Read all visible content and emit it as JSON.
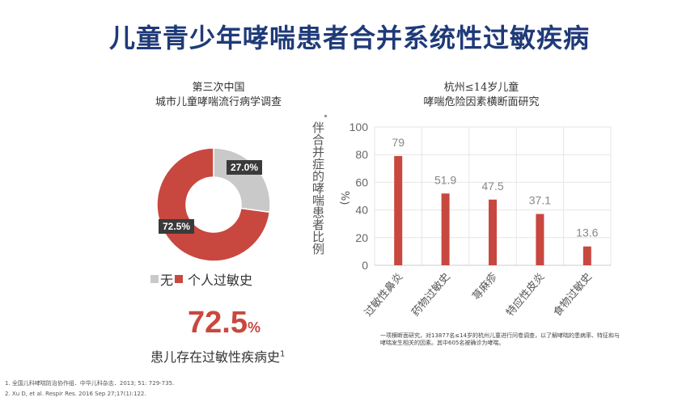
{
  "slide": {
    "title": "儿童青少年哮喘患者合并系统性过敏疾病"
  },
  "left": {
    "header_line1": "第三次中国",
    "header_line2": "城市儿童哮喘流行病学调查",
    "donut": {
      "slices": [
        {
          "label": "无",
          "value": 27.0,
          "display": "27.0%",
          "color": "#c9c9c9"
        },
        {
          "label": "个人过敏史",
          "value": 72.5,
          "display": "72.5%",
          "color": "#c8483f"
        }
      ]
    },
    "big_value": "72.5",
    "big_unit": "%",
    "big_caption": "患儿存在过敏性疾病史",
    "big_caption_ref": "1"
  },
  "right": {
    "header_line1": "杭州≤14岁儿童",
    "header_line2": "哮喘危险因素横断面研究",
    "ylabel_main": "伴合并症的哮喘患者比例",
    "ylabel_unit": "%)",
    "note": "一项横断面研究，对13877名≤14岁的杭州儿童进行问卷调查，以了解哮喘的患病率、特征和与哮喘发生相关的因素。其中605名被确诊为哮喘。"
  },
  "chart_data": {
    "type": "bar",
    "categories": [
      "过敏性鼻炎",
      "药物过敏史",
      "荨麻疹",
      "特应性皮炎",
      "食物过敏史"
    ],
    "values": [
      79,
      51.9,
      47.5,
      37.1,
      13.6
    ],
    "value_labels": [
      "79",
      "51.9",
      "47.5",
      "37.1",
      "13.6"
    ],
    "yticks": [
      "0",
      "20",
      "40",
      "60",
      "80",
      "100"
    ],
    "ylim": [
      0,
      100
    ],
    "color": "#c8483f",
    "grid": true
  },
  "refs": {
    "ref1": "1. 全国儿科哮喘防治协作组．中华儿科杂志．2013; 51: 729-735.",
    "ref2": "2. Xu D, et al. Respir Res. 2016 Sep 27;17(1):122."
  }
}
